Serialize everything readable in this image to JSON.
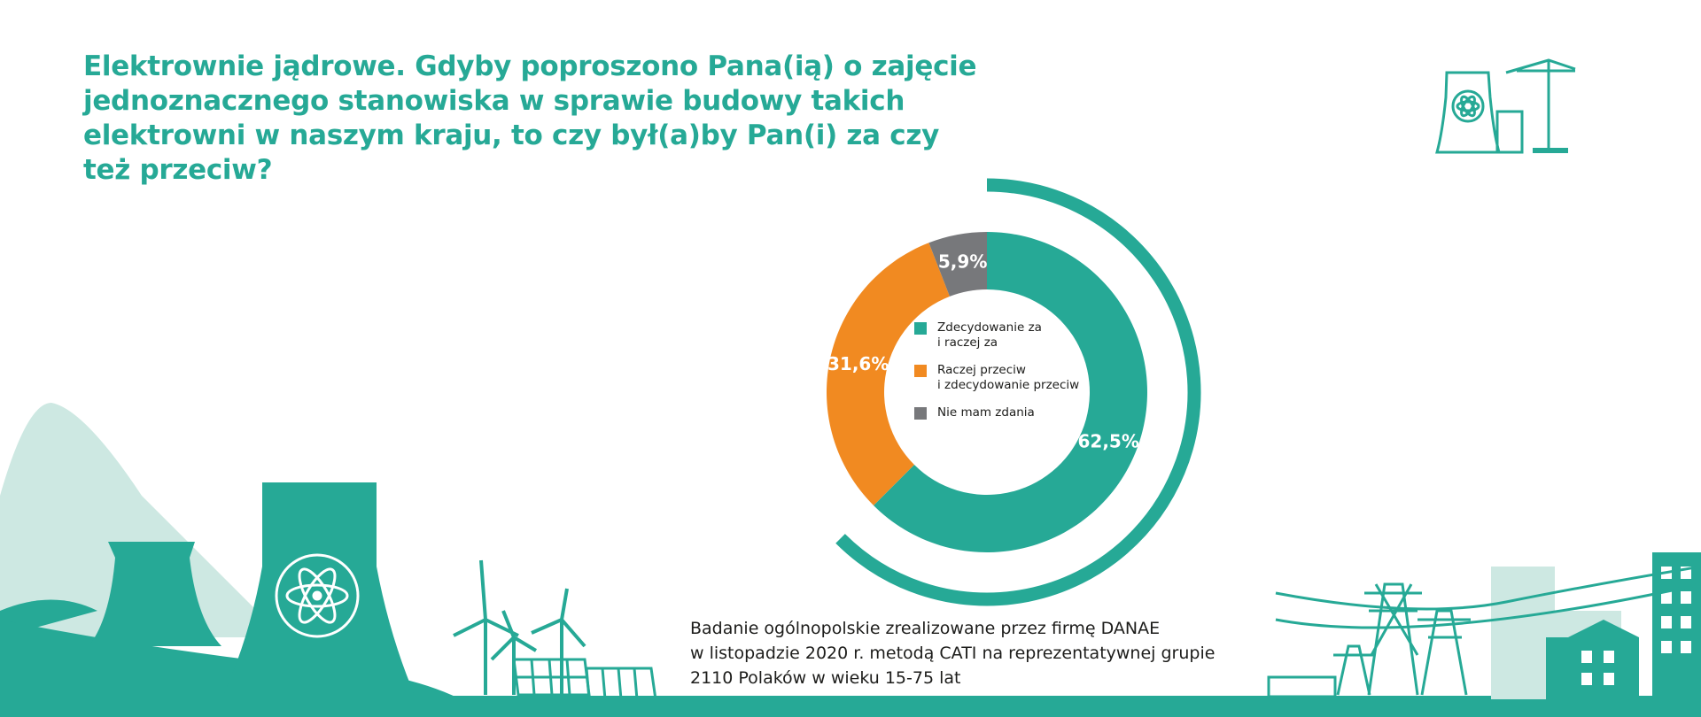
{
  "chart_data": {
    "type": "donut",
    "title": "Elektrownie jądrowe. Gdyby poproszono Pana(ią) o zajęcie jednoznacznego stanowiska w sprawie budowy takich elektrowni w naszym kraju, to czy był(a)by Pan(i) za czy też przeciw?",
    "categories": [
      "Zdecydowanie za\ni raczej za",
      "Raczej przeciw\ni zdecydowanie przeciw",
      "Nie mam zdania"
    ],
    "values": [
      62.5,
      31.6,
      5.9
    ],
    "value_labels": [
      "62,5%",
      "31,6%",
      "5,9%"
    ],
    "colors": [
      "#26a996",
      "#f18a21",
      "#77787b"
    ],
    "note": "Badanie ogólnopolskie zrealizowane przez firmę DANAE\nw listopadzie 2020 r. metodą CATI na reprezentatywnej grupie\n2110 Polaków w wieku 15-75 lat"
  }
}
